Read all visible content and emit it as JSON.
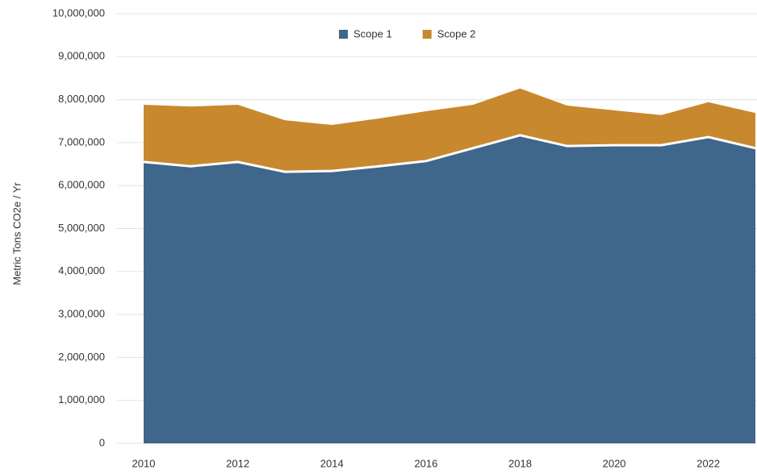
{
  "chart_data": {
    "type": "stacked_area",
    "y_label": "Metric Tons CO2e / Yr",
    "x": [
      2010,
      2011,
      2012,
      2013,
      2014,
      2015,
      2016,
      2017,
      2018,
      2019,
      2020,
      2021,
      2022,
      2023
    ],
    "xlim": [
      2010,
      2023
    ],
    "xticks": [
      2010,
      2012,
      2014,
      2016,
      2018,
      2020,
      2022
    ],
    "ylim": [
      0,
      10000000
    ],
    "yticks": [
      0,
      {
        "value": 1000000,
        "label": "1,000,000"
      },
      {
        "value": 2000000,
        "label": "2,000,000"
      },
      {
        "value": 3000000,
        "label": "3,000,000"
      },
      {
        "value": 4000000,
        "label": "4,000,000"
      },
      {
        "value": 5000000,
        "label": "5,000,000"
      },
      {
        "value": 6000000,
        "label": "6,000,000"
      },
      {
        "value": 7000000,
        "label": "7,000,000"
      },
      {
        "value": 8000000,
        "label": "8,000,000"
      },
      {
        "value": 9000000,
        "label": "9,000,000"
      },
      {
        "value": 10000000,
        "label": "10,000,000"
      }
    ],
    "grid": true,
    "legend": "top",
    "series": [
      {
        "name": "Scope 1",
        "color": "#3f668b",
        "values": [
          6550000,
          6450000,
          6550000,
          6320000,
          6340000,
          6450000,
          6570000,
          6870000,
          7170000,
          6920000,
          6940000,
          6940000,
          7130000,
          6870000
        ]
      },
      {
        "name": "Scope 2",
        "color": "#c8882e",
        "values": [
          1330000,
          1390000,
          1330000,
          1200000,
          1070000,
          1110000,
          1160000,
          1010000,
          1090000,
          940000,
          810000,
          700000,
          810000,
          820000
        ]
      }
    ]
  }
}
